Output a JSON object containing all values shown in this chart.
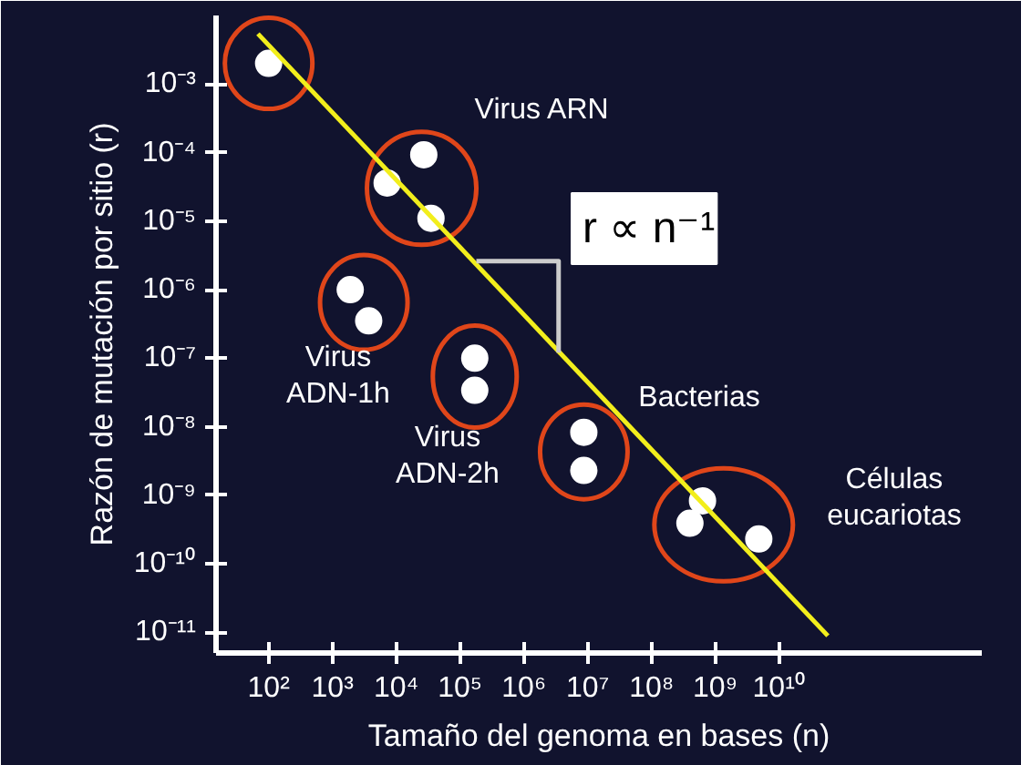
{
  "chart_data": {
    "type": "scatter",
    "xlabel": "Tamaño del genoma en bases (n)",
    "ylabel": "Razón de mutación por sitio (r)",
    "series": [
      {
        "marker": "circle",
        "color": "#ffffff",
        "x": [
          100,
          7200,
          27000,
          35000,
          1900,
          3700,
          170000,
          170000,
          8700000,
          8700000,
          630000000,
          400000000,
          4800000000
        ],
        "values": [
          0.002,
          3.6e-05,
          9.3e-05,
          1.1e-05,
          1e-06,
          3.5e-07,
          1e-07,
          3.4e-08,
          8.3e-09,
          2.3e-09,
          8.3e-10,
          3.9e-10,
          2.3e-10
        ]
      },
      {
        "type": "line",
        "marker": "none",
        "color": "#f2ee1c",
        "x": [
          68,
          58000000000
        ],
        "values": [
          0.0054,
          8.9e-12
        ]
      },
      {
        "type": "line",
        "marker": "none",
        "color": "#cccccc",
        "x": [
          180000,
          3500000,
          3500000
        ],
        "values": [
          2.6e-06,
          2.6e-06,
          1.2e-07
        ]
      }
    ],
    "annotations": [
      "Virus ARN",
      "Virus\nADN-1h",
      "Virus\nADN-2h",
      "Bacterias",
      "Células\neucariotas",
      "r ∝ n⁻¹"
    ],
    "xlim": [
      15,
      15000000000000
    ],
    "ylim": [
      5e-12,
      0.01
    ],
    "xticks": [
      {
        "value": 100,
        "label": "10²"
      },
      {
        "value": 1000,
        "label": "10³"
      },
      {
        "value": 10000,
        "label": "10⁴"
      },
      {
        "value": 100000,
        "label": "10⁵"
      },
      {
        "value": 1000000,
        "label": "10⁶"
      },
      {
        "value": 10000000,
        "label": "10⁷"
      },
      {
        "value": 100000000,
        "label": "10⁸"
      },
      {
        "value": 1000000000,
        "label": "10⁹"
      },
      {
        "value": 10000000000,
        "label": "10¹⁰"
      }
    ],
    "yticks": [
      {
        "value": 0.001,
        "label": "10⁻³"
      },
      {
        "value": 0.0001,
        "label": "10⁻⁴"
      },
      {
        "value": 1e-05,
        "label": "10⁻⁵"
      },
      {
        "value": 1e-06,
        "label": "10⁻⁶"
      },
      {
        "value": 1e-07,
        "label": "10⁻⁷"
      },
      {
        "value": 1e-08,
        "label": "10⁻⁸"
      },
      {
        "value": 1e-09,
        "label": "10⁻⁹"
      },
      {
        "value": 1e-10,
        "label": "10⁻¹⁰"
      },
      {
        "value": 1e-11,
        "label": "10⁻¹¹"
      }
    ],
    "log": "xy",
    "grid": false,
    "line_style": "solid"
  }
}
